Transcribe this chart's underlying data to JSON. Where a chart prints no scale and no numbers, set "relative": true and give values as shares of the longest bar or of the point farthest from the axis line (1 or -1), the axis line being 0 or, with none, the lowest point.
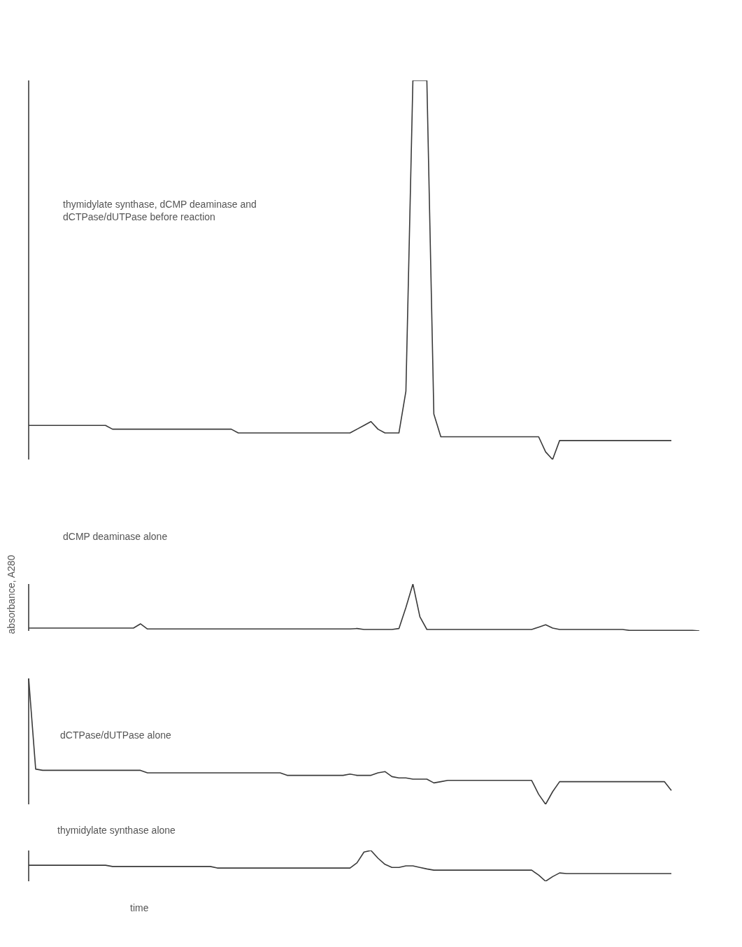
{
  "chart_data": [
    {
      "type": "line",
      "relative": true,
      "color": "#3a3a3a",
      "marker": "none",
      "line_style": "solid",
      "annotations": [
        "thymidylate synthase, dCMP deaminase and dCTPase/dUTPase before reaction"
      ],
      "categories": [
        null,
        null,
        null,
        null,
        null,
        null,
        null,
        null,
        null,
        null,
        null,
        null,
        null,
        null,
        null,
        null,
        null,
        null,
        null,
        null,
        null,
        null,
        null,
        null,
        null,
        null,
        null,
        null,
        null,
        null,
        null,
        null,
        null,
        null,
        null,
        null,
        null,
        null,
        null,
        null,
        null,
        null,
        null,
        null,
        null,
        null,
        null,
        null,
        null,
        null,
        null,
        null,
        null,
        null,
        null,
        null,
        null,
        null,
        null,
        null,
        null,
        null,
        null,
        null,
        null,
        null,
        null,
        null,
        null,
        null,
        null,
        null,
        null,
        null,
        null,
        null,
        null,
        null,
        null,
        null,
        null,
        null,
        null,
        null,
        null,
        null,
        null,
        null,
        null,
        null,
        null,
        null,
        null
      ],
      "values": [
        0.09,
        0.09,
        0.09,
        0.09,
        0.09,
        0.09,
        0.09,
        0.09,
        0.09,
        0.09,
        0.09,
        0.09,
        0.08,
        0.08,
        0.08,
        0.08,
        0.08,
        0.08,
        0.08,
        0.08,
        0.08,
        0.08,
        0.08,
        0.08,
        0.08,
        0.08,
        0.08,
        0.08,
        0.08,
        0.08,
        0.07,
        0.07,
        0.07,
        0.07,
        0.07,
        0.07,
        0.07,
        0.07,
        0.07,
        0.07,
        0.07,
        0.07,
        0.07,
        0.07,
        0.07,
        0.07,
        0.07,
        0.08,
        0.09,
        0.1,
        0.08,
        0.07,
        0.07,
        0.07,
        0.18,
        1,
        1,
        1,
        0.12,
        0.06,
        0.06,
        0.06,
        0.06,
        0.06,
        0.06,
        0.06,
        0.06,
        0.06,
        0.06,
        0.06,
        0.06,
        0.06,
        0.06,
        0.06,
        0.02,
        0,
        0.05,
        0.05,
        0.05,
        0.05,
        0.05,
        0.05,
        0.05,
        0.05,
        0.05,
        0.05,
        0.05,
        0.05,
        0.05,
        0.05,
        0.05,
        0.05,
        0.05
      ]
    },
    {
      "type": "line",
      "relative": true,
      "color": "#3a3a3a",
      "marker": "none",
      "line_style": "solid",
      "ylabel": "absorbance, A280",
      "annotations": [
        "dCMP deaminase alone"
      ],
      "categories": [
        null,
        null,
        null,
        null,
        null,
        null,
        null,
        null,
        null,
        null,
        null,
        null,
        null,
        null,
        null,
        null,
        null,
        null,
        null,
        null,
        null,
        null,
        null,
        null,
        null,
        null,
        null,
        null,
        null,
        null,
        null,
        null,
        null,
        null,
        null,
        null,
        null,
        null,
        null,
        null,
        null,
        null,
        null,
        null,
        null,
        null,
        null,
        null,
        null,
        null,
        null,
        null,
        null,
        null,
        null,
        null,
        null,
        null,
        null,
        null,
        null,
        null,
        null,
        null,
        null,
        null,
        null,
        null,
        null,
        null,
        null,
        null,
        null,
        null,
        null,
        null,
        null,
        null,
        null,
        null,
        null,
        null,
        null,
        null,
        null,
        null,
        null,
        null,
        null,
        null,
        null,
        null,
        null,
        null,
        null,
        null,
        null
      ],
      "values": [
        0.06,
        0.06,
        0.06,
        0.06,
        0.06,
        0.06,
        0.06,
        0.06,
        0.06,
        0.06,
        0.06,
        0.06,
        0.06,
        0.06,
        0.06,
        0.06,
        0.15,
        0.04,
        0.04,
        0.04,
        0.04,
        0.04,
        0.04,
        0.04,
        0.04,
        0.04,
        0.04,
        0.04,
        0.04,
        0.04,
        0.04,
        0.04,
        0.04,
        0.04,
        0.04,
        0.04,
        0.04,
        0.04,
        0.04,
        0.04,
        0.04,
        0.04,
        0.04,
        0.04,
        0.04,
        0.04,
        0.04,
        0.05,
        0.03,
        0.03,
        0.03,
        0.03,
        0.03,
        0.05,
        0.5,
        1,
        0.3,
        0.03,
        0.03,
        0.03,
        0.03,
        0.03,
        0.03,
        0.03,
        0.03,
        0.03,
        0.03,
        0.03,
        0.03,
        0.03,
        0.03,
        0.03,
        0.03,
        0.08,
        0.13,
        0.06,
        0.03,
        0.03,
        0.03,
        0.03,
        0.03,
        0.03,
        0.03,
        0.03,
        0.03,
        0.03,
        0.01,
        0.01,
        0.01,
        0.01,
        0.01,
        0.01,
        0.01,
        0.01,
        0.01,
        0.01,
        0
      ]
    },
    {
      "type": "line",
      "relative": true,
      "color": "#3a3a3a",
      "marker": "none",
      "line_style": "solid",
      "annotations": [
        "dCTPase/dUTPase alone"
      ],
      "categories": [
        null,
        null,
        null,
        null,
        null,
        null,
        null,
        null,
        null,
        null,
        null,
        null,
        null,
        null,
        null,
        null,
        null,
        null,
        null,
        null,
        null,
        null,
        null,
        null,
        null,
        null,
        null,
        null,
        null,
        null,
        null,
        null,
        null,
        null,
        null,
        null,
        null,
        null,
        null,
        null,
        null,
        null,
        null,
        null,
        null,
        null,
        null,
        null,
        null,
        null,
        null,
        null,
        null,
        null,
        null,
        null,
        null,
        null,
        null,
        null,
        null,
        null,
        null,
        null,
        null,
        null,
        null,
        null,
        null,
        null,
        null,
        null,
        null,
        null,
        null,
        null,
        null,
        null,
        null,
        null,
        null,
        null,
        null,
        null,
        null,
        null,
        null,
        null,
        null,
        null,
        null,
        null,
        null
      ],
      "values": [
        1,
        0.28,
        0.27,
        0.27,
        0.27,
        0.27,
        0.27,
        0.27,
        0.27,
        0.27,
        0.27,
        0.27,
        0.27,
        0.27,
        0.27,
        0.27,
        0.27,
        0.25,
        0.25,
        0.25,
        0.25,
        0.25,
        0.25,
        0.25,
        0.25,
        0.25,
        0.25,
        0.25,
        0.25,
        0.25,
        0.25,
        0.25,
        0.25,
        0.25,
        0.25,
        0.25,
        0.25,
        0.23,
        0.23,
        0.23,
        0.23,
        0.23,
        0.23,
        0.23,
        0.23,
        0.23,
        0.24,
        0.23,
        0.23,
        0.23,
        0.25,
        0.26,
        0.22,
        0.21,
        0.21,
        0.2,
        0.2,
        0.2,
        0.17,
        0.18,
        0.19,
        0.19,
        0.19,
        0.19,
        0.19,
        0.19,
        0.19,
        0.19,
        0.19,
        0.19,
        0.19,
        0.19,
        0.19,
        0.08,
        0,
        0.1,
        0.18,
        0.18,
        0.18,
        0.18,
        0.18,
        0.18,
        0.18,
        0.18,
        0.18,
        0.18,
        0.18,
        0.18,
        0.18,
        0.18,
        0.18,
        0.18,
        0.11
      ]
    },
    {
      "type": "line",
      "relative": true,
      "color": "#3a3a3a",
      "marker": "none",
      "line_style": "solid",
      "xlabel": "time",
      "annotations": [
        "thymidylate synthase alone"
      ],
      "categories": [
        null,
        null,
        null,
        null,
        null,
        null,
        null,
        null,
        null,
        null,
        null,
        null,
        null,
        null,
        null,
        null,
        null,
        null,
        null,
        null,
        null,
        null,
        null,
        null,
        null,
        null,
        null,
        null,
        null,
        null,
        null,
        null,
        null,
        null,
        null,
        null,
        null,
        null,
        null,
        null,
        null,
        null,
        null,
        null,
        null,
        null,
        null,
        null,
        null,
        null,
        null,
        null,
        null,
        null,
        null,
        null,
        null,
        null,
        null,
        null,
        null,
        null,
        null,
        null,
        null,
        null,
        null,
        null,
        null,
        null,
        null,
        null,
        null,
        null,
        null,
        null,
        null,
        null,
        null,
        null,
        null,
        null,
        null,
        null,
        null,
        null,
        null,
        null,
        null,
        null,
        null,
        null,
        null
      ],
      "values": [
        0.52,
        0.52,
        0.52,
        0.52,
        0.52,
        0.52,
        0.52,
        0.52,
        0.52,
        0.52,
        0.52,
        0.52,
        0.48,
        0.48,
        0.48,
        0.48,
        0.48,
        0.48,
        0.48,
        0.48,
        0.48,
        0.48,
        0.48,
        0.48,
        0.48,
        0.48,
        0.48,
        0.43,
        0.43,
        0.43,
        0.43,
        0.43,
        0.43,
        0.43,
        0.43,
        0.43,
        0.43,
        0.43,
        0.43,
        0.43,
        0.43,
        0.43,
        0.43,
        0.43,
        0.43,
        0.43,
        0.43,
        0.6,
        0.95,
        1,
        0.75,
        0.55,
        0.45,
        0.45,
        0.5,
        0.5,
        0.45,
        0.4,
        0.36,
        0.36,
        0.36,
        0.36,
        0.36,
        0.36,
        0.36,
        0.36,
        0.36,
        0.36,
        0.36,
        0.36,
        0.36,
        0.36,
        0.36,
        0.2,
        0,
        0.15,
        0.27,
        0.25,
        0.25,
        0.25,
        0.25,
        0.25,
        0.25,
        0.25,
        0.25,
        0.25,
        0.25,
        0.25,
        0.25,
        0.25,
        0.25,
        0.25,
        0.25
      ]
    }
  ]
}
